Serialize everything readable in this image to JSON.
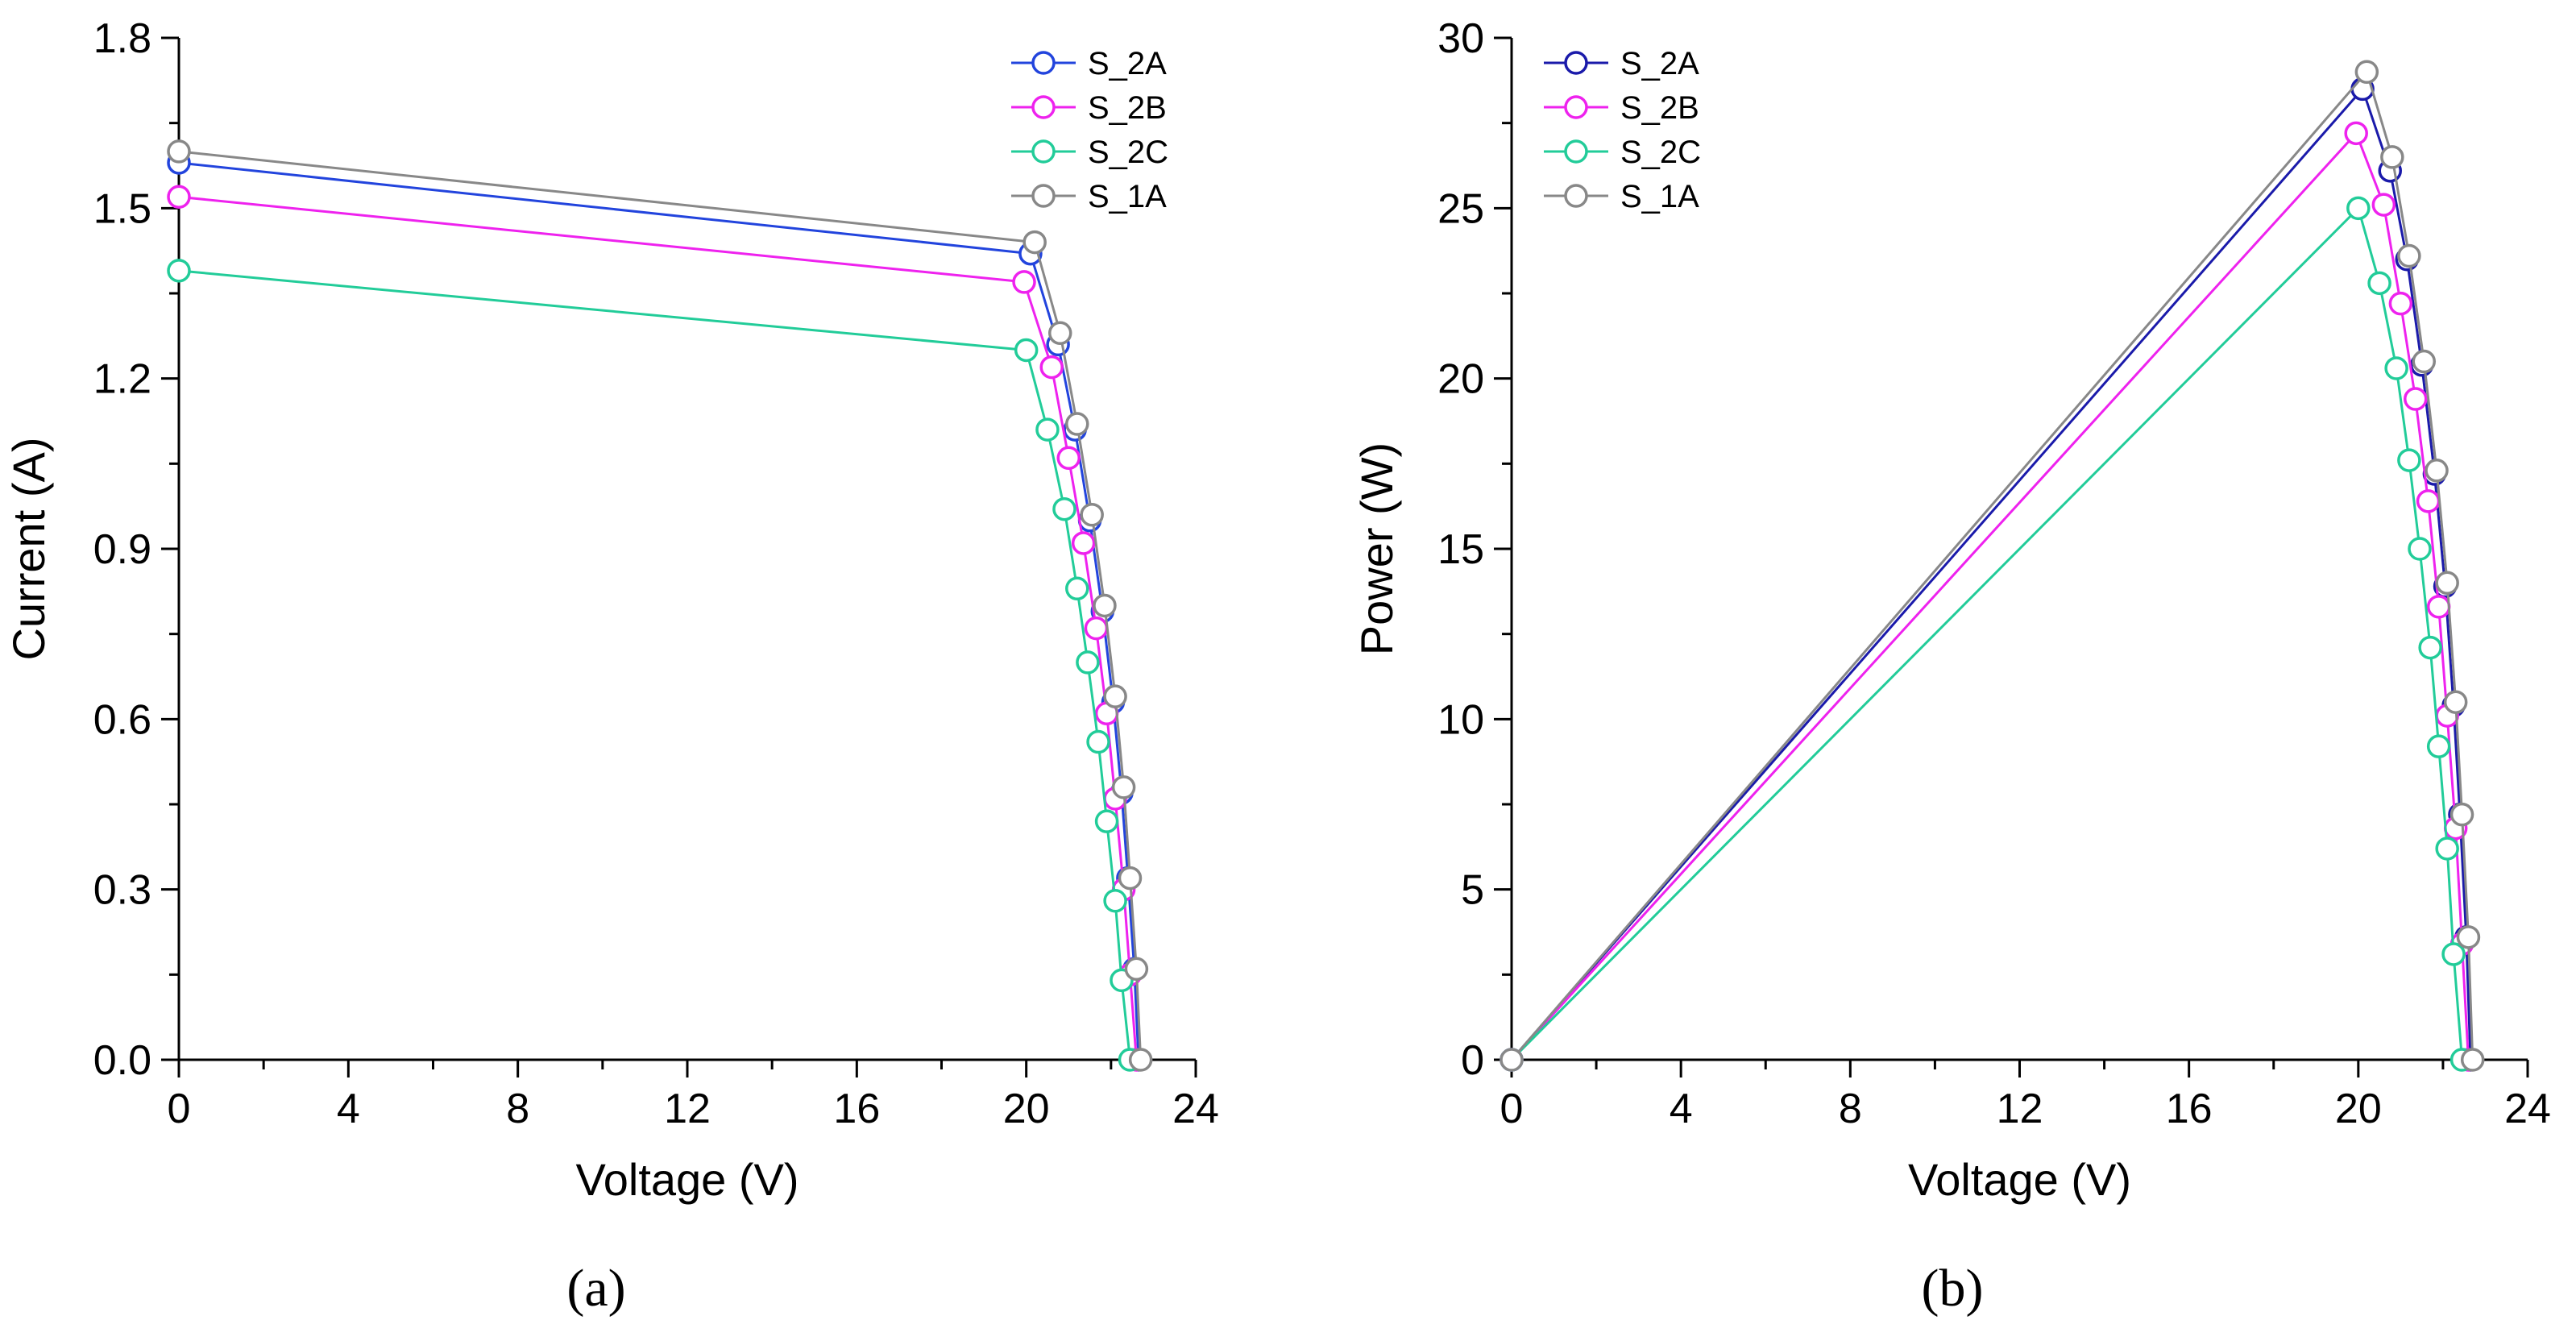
{
  "chart_data": [
    {
      "type": "line",
      "panel_label": "(a)",
      "xlabel": "Voltage (V)",
      "ylabel": "Current (A)",
      "xlim": [
        0,
        24
      ],
      "ylim": [
        0,
        1.8
      ],
      "xticks": [
        "0",
        "4",
        "8",
        "12",
        "16",
        "20",
        "24"
      ],
      "yticks": [
        "0.0",
        "0.3",
        "0.6",
        "0.9",
        "1.2",
        "1.5",
        "1.8"
      ],
      "legend_position": "top-right",
      "series": [
        {
          "name": "S_2A",
          "color": "#2244dd",
          "x": [
            0,
            20.1,
            20.75,
            21.15,
            21.5,
            21.8,
            22.05,
            22.25,
            22.4,
            22.55,
            22.65
          ],
          "y": [
            1.58,
            1.42,
            1.26,
            1.11,
            0.95,
            0.79,
            0.63,
            0.47,
            0.32,
            0.16,
            0.0
          ]
        },
        {
          "name": "S_2B",
          "color": "#ee22ee",
          "x": [
            0,
            19.95,
            20.6,
            21.0,
            21.35,
            21.65,
            21.9,
            22.1,
            22.3,
            22.45,
            22.6
          ],
          "y": [
            1.52,
            1.37,
            1.22,
            1.06,
            0.91,
            0.76,
            0.61,
            0.46,
            0.3,
            0.15,
            0.0
          ]
        },
        {
          "name": "S_2C",
          "color": "#22cc99",
          "x": [
            0,
            20.0,
            20.5,
            20.9,
            21.2,
            21.45,
            21.7,
            21.9,
            22.1,
            22.25,
            22.45
          ],
          "y": [
            1.39,
            1.25,
            1.11,
            0.97,
            0.83,
            0.7,
            0.56,
            0.42,
            0.28,
            0.14,
            0.0
          ]
        },
        {
          "name": "S_1A",
          "color": "#888888",
          "x": [
            0,
            20.2,
            20.8,
            21.2,
            21.55,
            21.85,
            22.1,
            22.3,
            22.45,
            22.6,
            22.7
          ],
          "y": [
            1.6,
            1.44,
            1.28,
            1.12,
            0.96,
            0.8,
            0.64,
            0.48,
            0.32,
            0.16,
            0.0
          ]
        }
      ]
    },
    {
      "type": "line",
      "panel_label": "(b)",
      "xlabel": "Voltage (V)",
      "ylabel": "Power (W)",
      "xlim": [
        0,
        24
      ],
      "ylim": [
        0,
        30
      ],
      "xticks": [
        "0",
        "4",
        "8",
        "12",
        "16",
        "20",
        "24"
      ],
      "yticks": [
        "0",
        "5",
        "10",
        "15",
        "20",
        "25",
        "30"
      ],
      "legend_position": "top-left",
      "series": [
        {
          "name": "S_2A",
          "color": "#1a1aaa",
          "x": [
            0,
            20.1,
            20.75,
            21.15,
            21.5,
            21.8,
            22.05,
            22.25,
            22.4,
            22.55,
            22.65
          ],
          "y": [
            0,
            28.5,
            26.1,
            23.5,
            20.4,
            17.2,
            13.9,
            10.4,
            7.2,
            3.6,
            0
          ]
        },
        {
          "name": "S_2B",
          "color": "#ee22ee",
          "x": [
            0,
            19.95,
            20.6,
            21.0,
            21.35,
            21.65,
            21.9,
            22.1,
            22.3,
            22.45,
            22.6
          ],
          "y": [
            0,
            27.2,
            25.1,
            22.2,
            19.4,
            16.4,
            13.3,
            10.1,
            6.8,
            3.4,
            0
          ]
        },
        {
          "name": "S_2C",
          "color": "#22cc99",
          "x": [
            0,
            20.0,
            20.5,
            20.9,
            21.2,
            21.45,
            21.7,
            21.9,
            22.1,
            22.25,
            22.45
          ],
          "y": [
            0,
            25.0,
            22.8,
            20.3,
            17.6,
            15.0,
            12.1,
            9.2,
            6.2,
            3.1,
            0
          ]
        },
        {
          "name": "S_1A",
          "color": "#888888",
          "x": [
            0,
            20.2,
            20.8,
            21.2,
            21.55,
            21.85,
            22.1,
            22.3,
            22.45,
            22.6,
            22.7
          ],
          "y": [
            0,
            29.0,
            26.5,
            23.6,
            20.5,
            17.3,
            14.0,
            10.5,
            7.2,
            3.6,
            0
          ]
        }
      ]
    }
  ]
}
